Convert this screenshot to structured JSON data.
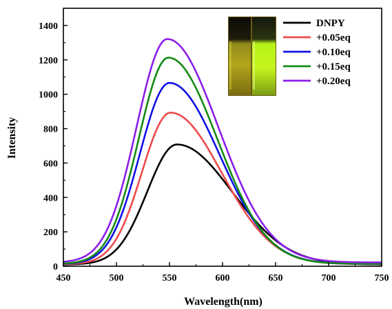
{
  "chart_data": {
    "type": "line",
    "xlabel": "Wavelength(nm)",
    "ylabel": "Intensity",
    "xlim": [
      450,
      750
    ],
    "ylim": [
      0,
      1500
    ],
    "xticks": [
      450,
      500,
      550,
      600,
      650,
      700,
      750
    ],
    "yticks": [
      0,
      200,
      400,
      600,
      800,
      1000,
      1200,
      1400
    ],
    "grid": false,
    "legend_position": "top-right",
    "inset": "photo of two cuvettes: left dark-yellow solution, right bright green-yellow fluorescent solution",
    "colors": {
      "DNPY": "#000000",
      "+0.05eq": "#ee4a4a",
      "+0.10eq": "#1010e8",
      "+0.15eq": "#138a13",
      "+0.20eq": "#8a1ee8"
    },
    "series": [
      {
        "name": "DNPY",
        "peak_x": 557,
        "peak_y": 708,
        "sigma_left": 28,
        "sigma_right": 52,
        "baseline": 10
      },
      {
        "name": "+0.05eq",
        "peak_x": 551,
        "peak_y": 893,
        "sigma_left": 27,
        "sigma_right": 48,
        "baseline": 12
      },
      {
        "name": "+0.10eq",
        "peak_x": 550,
        "peak_y": 1066,
        "sigma_left": 28,
        "sigma_right": 47,
        "baseline": 13
      },
      {
        "name": "+0.15eq",
        "peak_x": 549,
        "peak_y": 1213,
        "sigma_left": 28,
        "sigma_right": 46,
        "baseline": 14
      },
      {
        "name": "+0.20eq",
        "peak_x": 548,
        "peak_y": 1321,
        "sigma_left": 29,
        "sigma_right": 48,
        "baseline": 22
      }
    ]
  }
}
